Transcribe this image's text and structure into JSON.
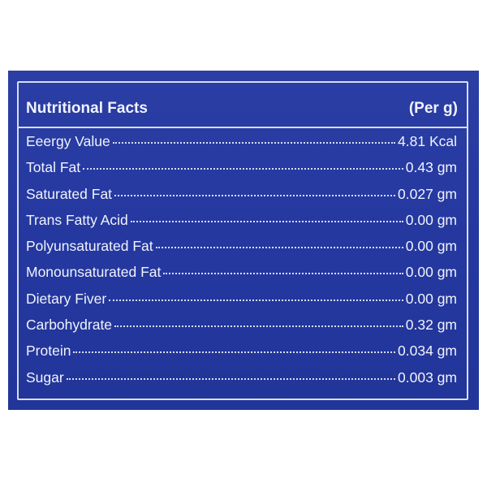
{
  "table": {
    "title": "Nutritional Facts",
    "unit": "(Per g)",
    "rows": [
      {
        "label": "Eeergy Value",
        "value": "4.81 Kcal"
      },
      {
        "label": "Total Fat",
        "value": "0.43 gm"
      },
      {
        "label": "Saturated Fat",
        "value": "0.027 gm"
      },
      {
        "label": "Trans Fatty Acid",
        "value": "0.00 gm"
      },
      {
        "label": "Polyunsaturated Fat",
        "value": "0.00 gm"
      },
      {
        "label": "Monounsaturated Fat",
        "value": "0.00 gm"
      },
      {
        "label": "Dietary Fiver",
        "value": "0.00 gm"
      },
      {
        "label": "Carbohydrate",
        "value": "0.32 gm"
      },
      {
        "label": "Protein",
        "value": "0.034 gm"
      },
      {
        "label": "Sugar",
        "value": "0.003 gm"
      }
    ]
  },
  "colors": {
    "background": "#2438a0",
    "text": "#f2f3fb",
    "border": "#d9ddf2"
  }
}
